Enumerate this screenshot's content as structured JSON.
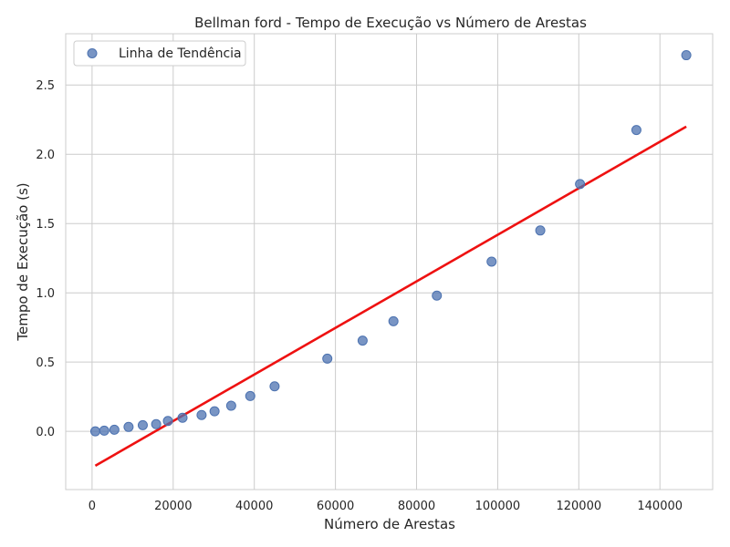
{
  "chart_data": {
    "type": "scatter",
    "title": "Bellman ford - Tempo de Execução vs Número de Arestas",
    "xlabel": "Número de Arestas",
    "ylabel": "Tempo de Execução (s)",
    "xlim": [
      -6500,
      153000
    ],
    "ylim": [
      -0.42,
      2.87
    ],
    "xticks": [
      0,
      20000,
      40000,
      60000,
      80000,
      100000,
      120000,
      140000
    ],
    "yticks": [
      0.0,
      0.5,
      1.0,
      1.5,
      2.0,
      2.5
    ],
    "xtick_labels": [
      "0",
      "20000",
      "40000",
      "60000",
      "80000",
      "100000",
      "120000",
      "140000"
    ],
    "ytick_labels": [
      "0.0",
      "0.5",
      "1.0",
      "1.5",
      "2.0",
      "2.5"
    ],
    "grid": true,
    "legend_position": "top-left",
    "series": [
      {
        "name": "Linha de Tendência",
        "kind": "scatter",
        "color": "#4c72b0",
        "x": [
          800,
          3000,
          5500,
          9000,
          12500,
          15800,
          18700,
          22300,
          27000,
          30200,
          34300,
          39000,
          45000,
          58000,
          66700,
          74300,
          85000,
          98500,
          110500,
          120300,
          134200,
          146500
        ],
        "y": [
          0.0,
          0.005,
          0.012,
          0.032,
          0.045,
          0.052,
          0.075,
          0.098,
          0.118,
          0.145,
          0.185,
          0.255,
          0.325,
          0.525,
          0.655,
          0.795,
          0.98,
          1.225,
          1.45,
          1.785,
          2.175,
          2.715
        ]
      },
      {
        "kind": "line",
        "color": "#ee1111",
        "x": [
          800,
          146500
        ],
        "y": [
          -0.248,
          2.2
        ]
      }
    ]
  }
}
